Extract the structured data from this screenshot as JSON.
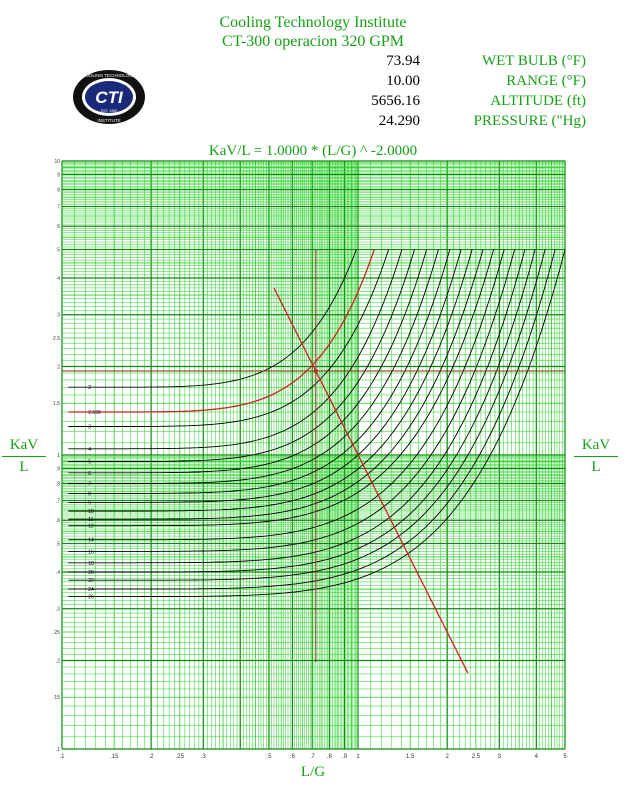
{
  "header": {
    "org": "Cooling Technology Institute",
    "subtitle": "CT-300 operacion 320 GPM"
  },
  "logo": {
    "text": "CTI",
    "ring_text_top": "COOLING TECHNOLOGY",
    "ring_text_bottom": "INSTITUTE",
    "ring_text_mid": "EST. 1950"
  },
  "params": [
    {
      "value": "73.94",
      "label": "WET BULB (°F)"
    },
    {
      "value": "10.00",
      "label": "RANGE (°F)"
    },
    {
      "value": "5656.16",
      "label": "ALTITUDE (ft)"
    },
    {
      "value": "24.290",
      "label": "PRESSURE (\"Hg)"
    }
  ],
  "colors": {
    "grid": "#22d022",
    "grid_major": "#0a8a0a",
    "background": "#ffffff",
    "label_green": "#16a016",
    "curve": "#000000",
    "highlight": "#d02020"
  },
  "chart_data": {
    "type": "line",
    "title": "KaV/L = 1.0000 * (L/G) ^ -2.0000",
    "xlabel": "L/G",
    "ylabel_top": "KaV",
    "ylabel_bottom": "L",
    "x_scale": "log",
    "y_scale": "log",
    "xlim": [
      0.1,
      5
    ],
    "ylim": [
      0.1,
      10
    ],
    "grid": true,
    "x_ticks": [
      {
        "v": 0.1,
        "label": ".1"
      },
      {
        "v": 0.15,
        "label": ".15"
      },
      {
        "v": 0.2,
        "label": ".2"
      },
      {
        "v": 0.25,
        "label": ".25"
      },
      {
        "v": 0.3,
        "label": ".3"
      },
      {
        "v": 0.5,
        "label": ".5"
      },
      {
        "v": 0.6,
        "label": ".6"
      },
      {
        "v": 0.7,
        "label": ".7"
      },
      {
        "v": 0.8,
        "label": ".8"
      },
      {
        "v": 0.9,
        "label": ".9"
      },
      {
        "v": 1,
        "label": "1"
      },
      {
        "v": 1.5,
        "label": "1.5"
      },
      {
        "v": 2,
        "label": "2"
      },
      {
        "v": 2.5,
        "label": "2.5"
      },
      {
        "v": 3,
        "label": "3"
      },
      {
        "v": 4,
        "label": "4"
      },
      {
        "v": 5,
        "label": "5"
      }
    ],
    "y_ticks": [
      {
        "v": 0.1,
        "label": ".1"
      },
      {
        "v": 0.15,
        "label": ".15"
      },
      {
        "v": 0.2,
        "label": ".2"
      },
      {
        "v": 0.25,
        "label": ".25"
      },
      {
        "v": 0.3,
        "label": ".3"
      },
      {
        "v": 0.4,
        "label": ".4"
      },
      {
        "v": 0.5,
        "label": ".5"
      },
      {
        "v": 0.6,
        "label": ".6"
      },
      {
        "v": 0.7,
        "label": ".7"
      },
      {
        "v": 0.8,
        "label": ".8"
      },
      {
        "v": 0.9,
        "label": ".9"
      },
      {
        "v": 1,
        "label": "1"
      },
      {
        "v": 1.5,
        "label": "1.5"
      },
      {
        "v": 2,
        "label": "2"
      },
      {
        "v": 2.5,
        "label": "2.5"
      },
      {
        "v": 3,
        "label": "3"
      },
      {
        "v": 4,
        "label": "4"
      },
      {
        "v": 5,
        "label": "5"
      },
      {
        "v": 6,
        "label": "6"
      },
      {
        "v": 7,
        "label": "7"
      },
      {
        "v": 8,
        "label": "8"
      },
      {
        "v": 9,
        "label": "9"
      },
      {
        "v": 10,
        "label": "10"
      }
    ],
    "approach_curves": [
      {
        "label": "2",
        "y_start": 1.7
      },
      {
        "label": "2.599",
        "y_start": 1.4,
        "highlight": true
      },
      {
        "label": "3",
        "y_start": 1.25
      },
      {
        "label": "4",
        "y_start": 1.05
      },
      {
        "label": "5",
        "y_start": 0.95
      },
      {
        "label": "6",
        "y_start": 0.87
      },
      {
        "label": "7",
        "y_start": 0.8
      },
      {
        "label": "8",
        "y_start": 0.74
      },
      {
        "label": "9",
        "y_start": 0.69
      },
      {
        "label": "10",
        "y_start": 0.645
      },
      {
        "label": "11",
        "y_start": 0.605
      },
      {
        "label": "12",
        "y_start": 0.575
      },
      {
        "label": "14",
        "y_start": 0.515
      },
      {
        "label": "16",
        "y_start": 0.47
      },
      {
        "label": "18",
        "y_start": 0.43
      },
      {
        "label": "20",
        "y_start": 0.4
      },
      {
        "label": "22",
        "y_start": 0.375
      },
      {
        "label": "24",
        "y_start": 0.35
      },
      {
        "label": "26",
        "y_start": 0.33
      }
    ],
    "characteristic_line": {
      "equation": "KaV/L = 1.0000 * (L/G) ^ -2.0000",
      "coefficient": 1.0,
      "exponent": -2.0,
      "x_range": [
        0.52,
        2.35
      ]
    },
    "operating_point": {
      "x": 0.72,
      "y": 1.93
    },
    "curve_top": 5
  }
}
